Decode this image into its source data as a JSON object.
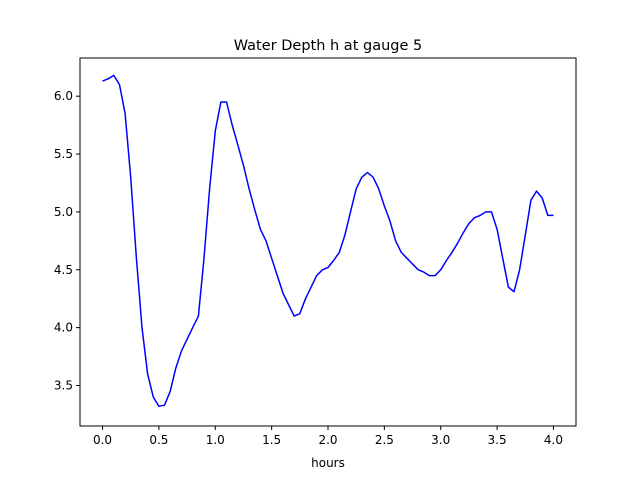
{
  "chart_data": {
    "type": "line",
    "title": "Water Depth h at gauge 5",
    "xlabel": "hours",
    "ylabel": "",
    "xlim": [
      -0.2,
      4.2
    ],
    "ylim": [
      3.15,
      6.33
    ],
    "xticks": [
      "0.0",
      "0.5",
      "1.0",
      "1.5",
      "2.0",
      "2.5",
      "3.0",
      "3.5",
      "4.0"
    ],
    "yticks": [
      "3.5",
      "4.0",
      "4.5",
      "5.0",
      "5.5",
      "6.0"
    ],
    "grid": false,
    "legend": "none",
    "series": [
      {
        "color": "#0000ff",
        "x": [
          0.0,
          0.05,
          0.1,
          0.15,
          0.2,
          0.25,
          0.3,
          0.35,
          0.4,
          0.45,
          0.5,
          0.55,
          0.6,
          0.65,
          0.7,
          0.75,
          0.8,
          0.85,
          0.9,
          0.95,
          1.0,
          1.05,
          1.1,
          1.15,
          1.2,
          1.25,
          1.3,
          1.35,
          1.4,
          1.45,
          1.5,
          1.55,
          1.6,
          1.65,
          1.7,
          1.75,
          1.8,
          1.85,
          1.9,
          1.95,
          2.0,
          2.05,
          2.1,
          2.15,
          2.2,
          2.25,
          2.3,
          2.35,
          2.4,
          2.45,
          2.5,
          2.55,
          2.6,
          2.65,
          2.7,
          2.75,
          2.8,
          2.85,
          2.9,
          2.95,
          3.0,
          3.05,
          3.1,
          3.15,
          3.2,
          3.25,
          3.3,
          3.35,
          3.4,
          3.45,
          3.5,
          3.55,
          3.6,
          3.65,
          3.7,
          3.75,
          3.8,
          3.85,
          3.9,
          3.95,
          4.0
        ],
        "y": [
          6.13,
          6.15,
          6.18,
          6.1,
          5.85,
          5.3,
          4.6,
          4.0,
          3.6,
          3.4,
          3.32,
          3.33,
          3.45,
          3.65,
          3.8,
          3.9,
          4.0,
          4.1,
          4.6,
          5.2,
          5.7,
          5.95,
          5.95,
          5.75,
          5.58,
          5.4,
          5.2,
          5.02,
          4.85,
          4.75,
          4.6,
          4.45,
          4.3,
          4.2,
          4.1,
          4.12,
          4.25,
          4.35,
          4.45,
          4.5,
          4.52,
          4.58,
          4.65,
          4.8,
          5.0,
          5.2,
          5.3,
          5.34,
          5.3,
          5.2,
          5.05,
          4.92,
          4.75,
          4.65,
          4.6,
          4.55,
          4.5,
          4.48,
          4.45,
          4.45,
          4.5,
          4.58,
          4.65,
          4.73,
          4.82,
          4.9,
          4.95,
          4.97,
          5.0,
          5.0,
          4.85,
          4.6,
          4.35,
          4.31,
          4.5,
          4.8,
          5.1,
          5.18,
          5.12,
          4.97,
          4.97
        ]
      }
    ]
  }
}
